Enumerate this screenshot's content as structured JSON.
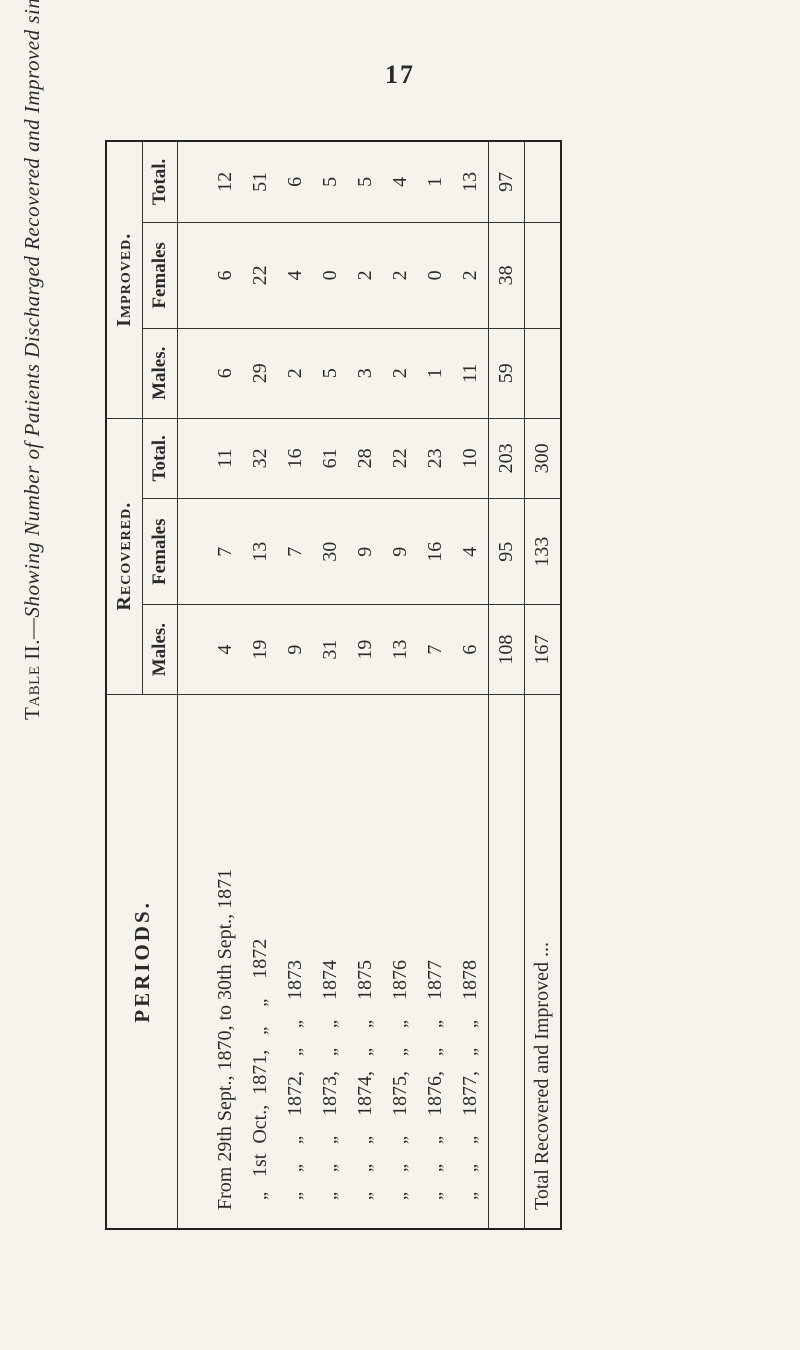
{
  "page_number": "17",
  "caption": {
    "prefix": "Table II.—",
    "italic": "Showing Number of Patients Discharged Recovered and Improved since opening of Asylum."
  },
  "headers": {
    "periods": "PERIODS.",
    "recovered": "Recovered.",
    "improved": "Improved.",
    "males": "Males.",
    "females": "Females",
    "total": "Total."
  },
  "periods": [
    "From 29th Sept., 1870, to 30th Sept., 1871",
    "  „   1st  Oct.,  1871,   „    „    1872",
    "  „    „    „    1872,   „    „    1873",
    "  „    „    „    1873,   „    „    1874",
    "  „    „    „    1874,   „    „    1875",
    "  „    „    „    1875,   „    „    1876",
    "  „    „    „    1876,   „    „    1877",
    "  „    „    „    1877,   „    „    1878"
  ],
  "data": {
    "recovered": {
      "males": [
        4,
        19,
        9,
        31,
        19,
        13,
        7,
        6
      ],
      "females": [
        7,
        13,
        7,
        30,
        9,
        9,
        16,
        4
      ],
      "total": [
        11,
        32,
        16,
        61,
        28,
        22,
        23,
        10
      ]
    },
    "improved": {
      "males": [
        6,
        29,
        2,
        5,
        3,
        2,
        1,
        11
      ],
      "females": [
        6,
        22,
        4,
        0,
        2,
        2,
        0,
        2
      ],
      "total": [
        12,
        51,
        6,
        5,
        5,
        4,
        1,
        13
      ]
    }
  },
  "subtotals": {
    "recovered": {
      "males": 108,
      "females": 95,
      "total": 203
    },
    "improved": {
      "males": 59,
      "females": 38,
      "total": 97
    }
  },
  "grand": {
    "label": "Total Recovered and Improved ...",
    "recovered": {
      "males": 167,
      "females": 133,
      "total": 300
    }
  },
  "style": {
    "bg": "#f5f3ec",
    "fg": "#2a2a2a",
    "border_thick": 2.5,
    "border_thin": 1,
    "font_body_pt": 20,
    "font_caption_pt": 21
  }
}
